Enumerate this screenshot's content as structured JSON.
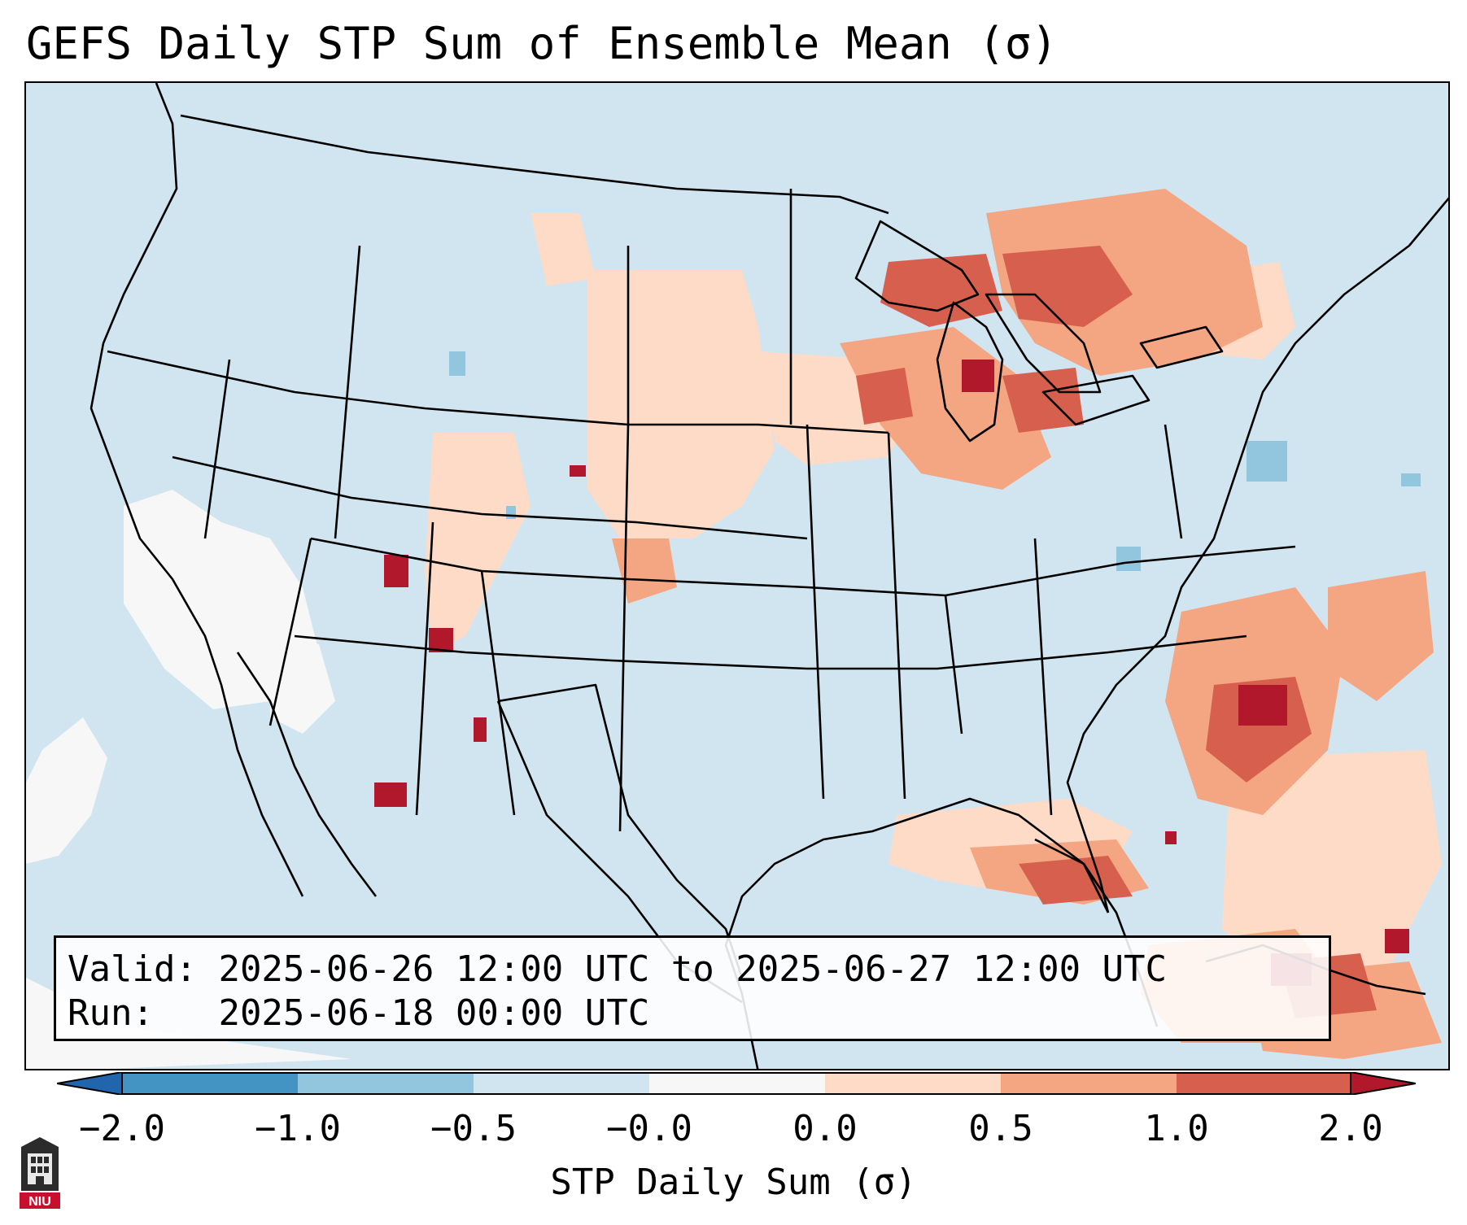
{
  "title": "GEFS Daily STP Sum of Ensemble Mean (σ)",
  "valid_label": "Valid:",
  "valid_range": "2025-06-26 12:00 UTC to 2025-06-27 12:00 UTC",
  "run_label": "Run:",
  "run_time": "2025-06-18 00:00 UTC",
  "colorbar": {
    "title": "STP Daily Sum (σ)",
    "ticks": [
      "−2.0",
      "−1.0",
      "−0.5",
      "−0.0",
      "0.0",
      "0.5",
      "1.0",
      "2.0"
    ],
    "colors": [
      "#2166ac",
      "#4393c3",
      "#92c5de",
      "#d1e5f0",
      "#f7f7f7",
      "#fddbc7",
      "#f4a582",
      "#d6604d",
      "#b2182b"
    ]
  },
  "logo": "NIU",
  "map": {
    "background_color": "#d1e5f0",
    "anomaly_regions": [
      {
        "region": "Great Lakes / Ontario",
        "level": "0.5 to 2.0"
      },
      {
        "region": "Southeast US coast / Atlantic",
        "level": "0.5 to 2.0"
      },
      {
        "region": "Gulf Coast",
        "level": "0.5 to 2.0"
      },
      {
        "region": "Arizona / New Mexico",
        "level": "1.0 to 2.0"
      },
      {
        "region": "Great Basin / California",
        "level": "-0.0 to 0.0"
      },
      {
        "region": "Northern Plains",
        "level": "0.0 to 0.5"
      }
    ]
  }
}
